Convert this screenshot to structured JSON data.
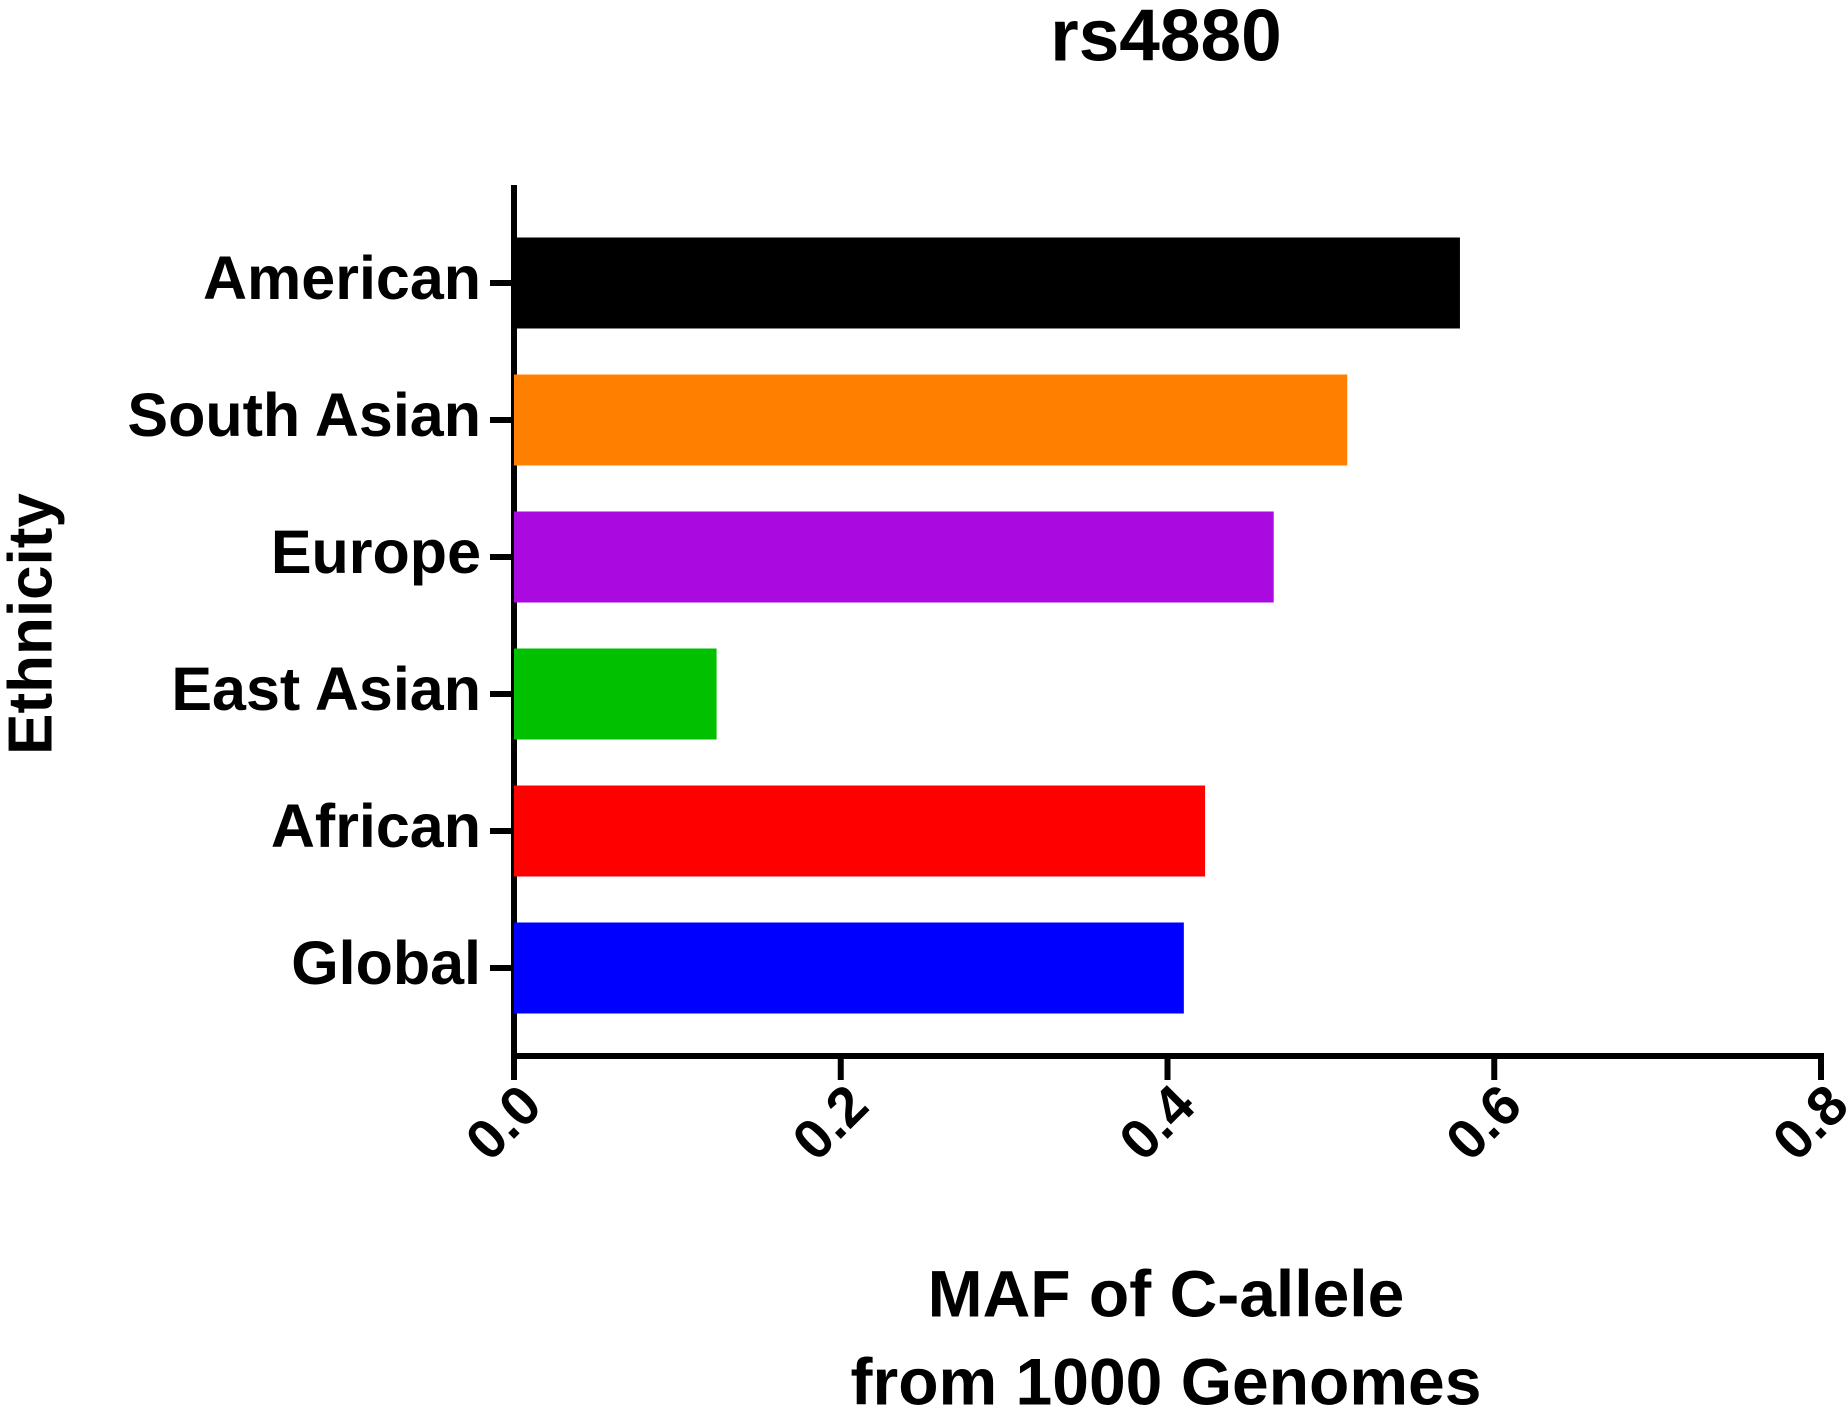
{
  "chart_data": {
    "type": "bar",
    "orientation": "horizontal",
    "title": "rs4880",
    "categories": [
      "American",
      "South Asian",
      "Europe",
      "East Asian",
      "African",
      "Global"
    ],
    "values": [
      0.579,
      0.51,
      0.465,
      0.124,
      0.423,
      0.41
    ],
    "colors": [
      "#000000",
      "#ff8000",
      "#aa0ae0",
      "#00c000",
      "#ff0000",
      "#0000ff"
    ],
    "xlim": [
      0,
      0.8
    ],
    "xticks": [
      {
        "value": 0,
        "label": "0.0"
      },
      0.2,
      0.4,
      0.6,
      0.8
    ],
    "xlabel": [
      "MAF of C-allele",
      "from 1000 Genomes"
    ],
    "ylabel": "Ethnicity",
    "grid": false
  }
}
